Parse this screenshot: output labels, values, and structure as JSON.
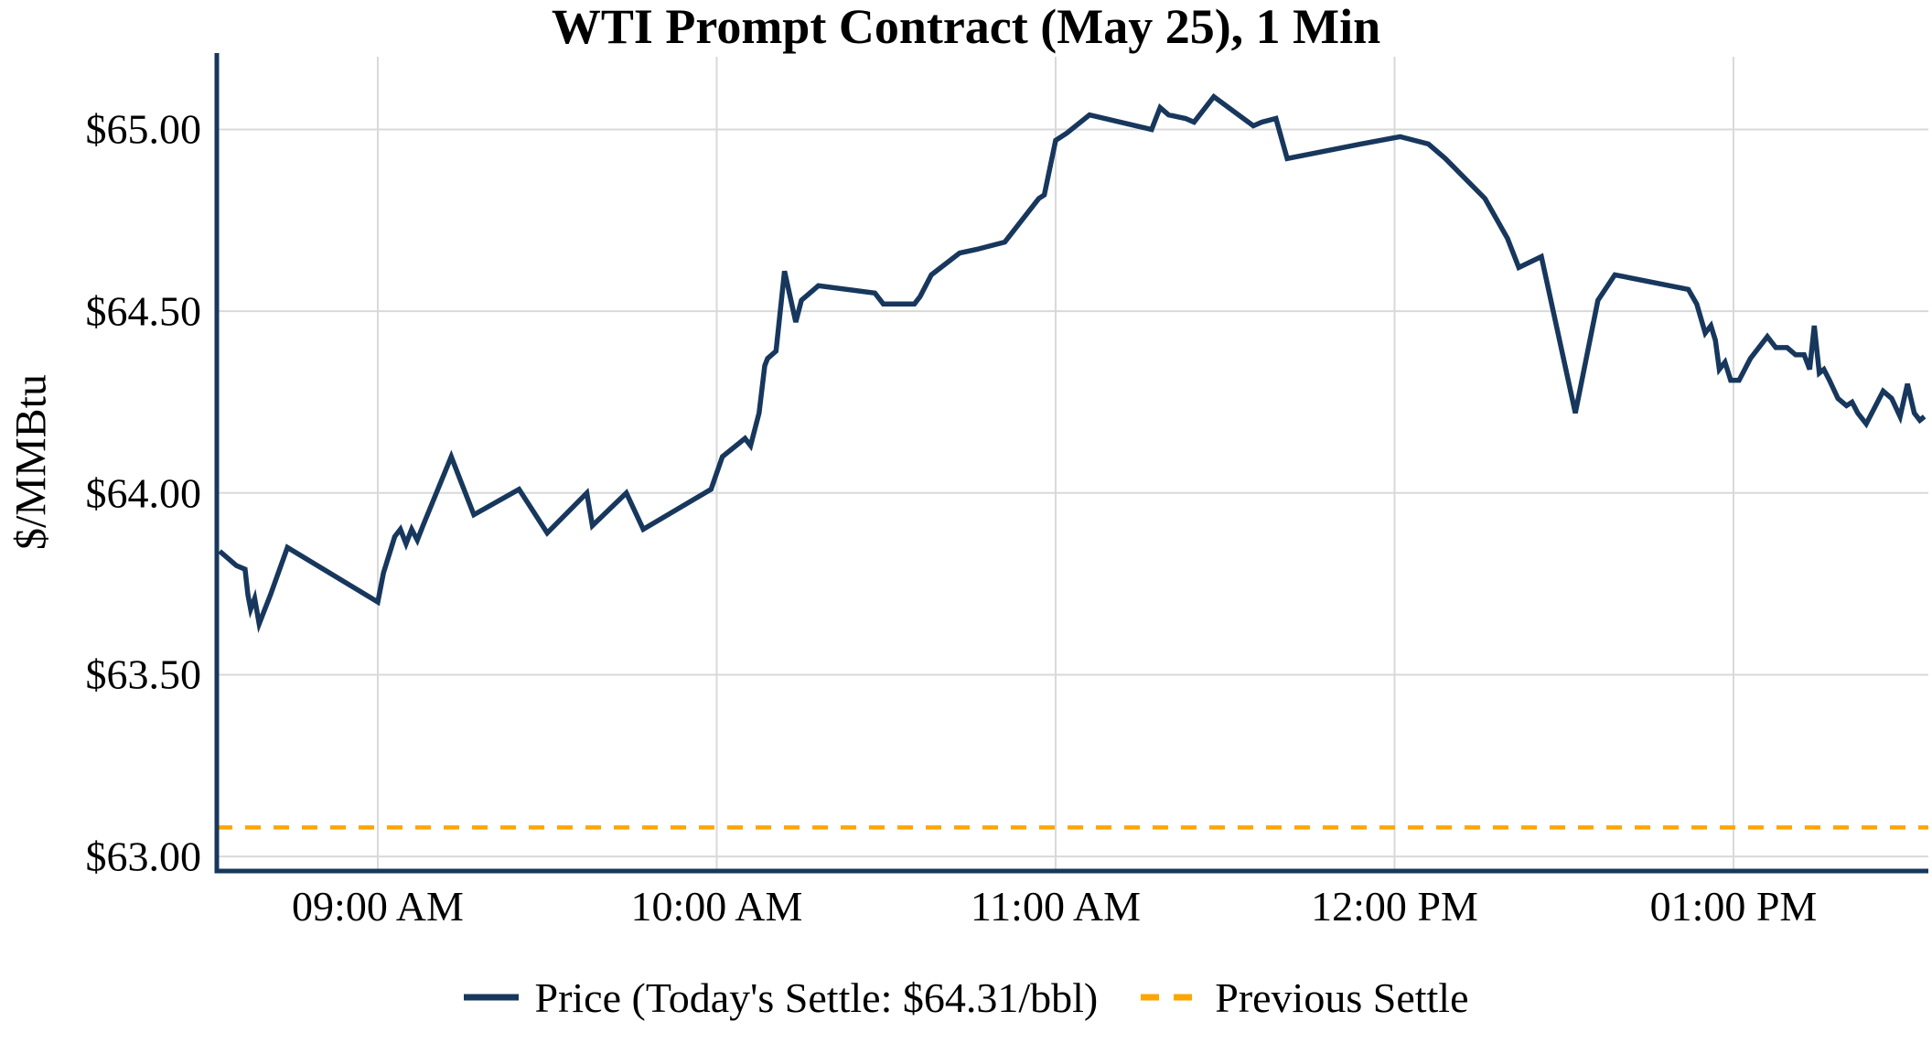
{
  "title": "WTI Prompt Contract (May 25), 1 Min",
  "y_axis_title": "$/MMBtu",
  "legend": {
    "price_label": "Price (Today's Settle: $64.31/bbl)",
    "previous_settle_label": "Previous Settle"
  },
  "colors": {
    "price_line": "#17375d",
    "previous_settle_line": "#ffa500",
    "gridline": "#d9d9d9",
    "axis_spine": "#17375d",
    "text": "#000000"
  },
  "chart_data": {
    "type": "line",
    "title": "WTI Prompt Contract (May 25), 1 Min",
    "xlabel": "",
    "ylabel": "$/MMBtu",
    "grid": true,
    "legend_position": "bottom-center",
    "xlim_minutes": [
      511.5,
      814.5
    ],
    "ylim": [
      62.96,
      65.2
    ],
    "y_ticks": [
      63.0,
      63.5,
      64.0,
      64.5,
      65.0
    ],
    "y_tick_labels": [
      "$63.00",
      "$63.50",
      "$64.00",
      "$64.50",
      "$65.00"
    ],
    "x_ticks_minutes": [
      540,
      600,
      660,
      720,
      780
    ],
    "x_tick_labels": [
      "09:00 AM",
      "10:00 AM",
      "11:00 AM",
      "12:00 PM",
      "01:00 PM"
    ],
    "todays_settle": 64.31,
    "previous_settle": 63.08,
    "series": [
      {
        "name": "Price",
        "style": "solid",
        "points_minutes_price": [
          [
            512,
            63.84
          ],
          [
            513.5,
            63.82
          ],
          [
            515,
            63.8
          ],
          [
            516.5,
            63.79
          ],
          [
            517,
            63.72
          ],
          [
            517.5,
            63.68
          ],
          [
            518.2,
            63.71
          ],
          [
            519,
            63.64
          ],
          [
            521,
            63.72
          ],
          [
            524,
            63.85
          ],
          [
            540,
            63.7
          ],
          [
            541,
            63.78
          ],
          [
            543,
            63.88
          ],
          [
            544,
            63.9
          ],
          [
            545,
            63.86
          ],
          [
            546,
            63.9
          ],
          [
            547,
            63.87
          ],
          [
            548,
            63.91
          ],
          [
            553,
            64.1
          ],
          [
            554,
            64.06
          ],
          [
            557,
            63.94
          ],
          [
            565,
            64.01
          ],
          [
            570,
            63.89
          ],
          [
            577,
            64.0
          ],
          [
            578,
            63.91
          ],
          [
            584,
            64.0
          ],
          [
            587,
            63.9
          ],
          [
            599,
            64.01
          ],
          [
            601,
            64.1
          ],
          [
            605,
            64.15
          ],
          [
            606,
            64.13
          ],
          [
            607.5,
            64.22
          ],
          [
            608.5,
            64.35
          ],
          [
            609,
            64.37
          ],
          [
            610.5,
            64.39
          ],
          [
            612,
            64.61
          ],
          [
            614,
            64.47
          ],
          [
            615,
            64.53
          ],
          [
            618,
            64.57
          ],
          [
            628,
            64.55
          ],
          [
            629.5,
            64.52
          ],
          [
            635,
            64.52
          ],
          [
            636,
            64.54
          ],
          [
            638,
            64.6
          ],
          [
            643,
            64.66
          ],
          [
            646,
            64.67
          ],
          [
            651,
            64.69
          ],
          [
            657,
            64.81
          ],
          [
            658,
            64.82
          ],
          [
            660,
            64.97
          ],
          [
            662,
            64.99
          ],
          [
            666,
            65.04
          ],
          [
            677,
            65.0
          ],
          [
            678.5,
            65.06
          ],
          [
            680,
            65.04
          ],
          [
            683,
            65.03
          ],
          [
            684.5,
            65.02
          ],
          [
            688,
            65.09
          ],
          [
            695,
            65.01
          ],
          [
            696.5,
            65.02
          ],
          [
            699,
            65.03
          ],
          [
            701,
            64.92
          ],
          [
            714,
            64.96
          ],
          [
            721,
            64.98
          ],
          [
            726,
            64.96
          ],
          [
            729,
            64.92
          ],
          [
            736,
            64.81
          ],
          [
            740,
            64.7
          ],
          [
            742,
            64.62
          ],
          [
            746,
            64.65
          ],
          [
            752,
            64.22
          ],
          [
            756,
            64.53
          ],
          [
            759,
            64.6
          ],
          [
            772,
            64.56
          ],
          [
            773.5,
            64.52
          ],
          [
            775,
            64.44
          ],
          [
            776,
            64.46
          ],
          [
            776.8,
            64.42
          ],
          [
            777.5,
            64.34
          ],
          [
            778.5,
            64.36
          ],
          [
            779.5,
            64.31
          ],
          [
            781,
            64.31
          ],
          [
            783,
            64.37
          ],
          [
            786,
            64.43
          ],
          [
            787.5,
            64.4
          ],
          [
            789.5,
            64.4
          ],
          [
            791,
            64.38
          ],
          [
            792.5,
            64.38
          ],
          [
            793.5,
            64.34
          ],
          [
            794.3,
            64.46
          ],
          [
            795.2,
            64.33
          ],
          [
            796,
            64.34
          ],
          [
            797,
            64.31
          ],
          [
            798.5,
            64.26
          ],
          [
            800,
            64.24
          ],
          [
            801,
            64.25
          ],
          [
            802,
            64.22
          ],
          [
            803.5,
            64.19
          ],
          [
            805.5,
            64.25
          ],
          [
            806.5,
            64.28
          ],
          [
            808,
            64.26
          ],
          [
            809.5,
            64.21
          ],
          [
            810.8,
            64.3
          ],
          [
            812,
            64.22
          ],
          [
            813,
            64.2
          ],
          [
            813.8,
            64.21
          ]
        ]
      },
      {
        "name": "Previous Settle",
        "style": "dashed",
        "constant_price": 63.08
      }
    ]
  }
}
